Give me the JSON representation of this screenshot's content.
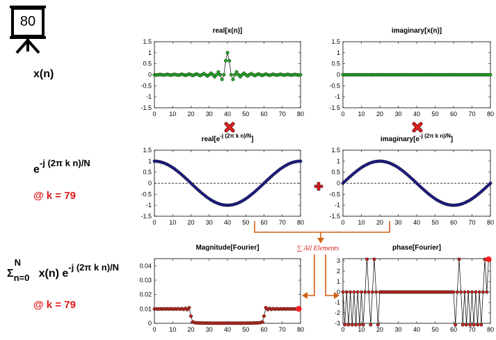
{
  "frame_number": "80",
  "labels": {
    "row1": "x(n)",
    "row2_base": "e",
    "row2_exp": "-j (2π k n)/N",
    "row2_k": "@ k = 79",
    "row3_sigma": "Σ",
    "row3_sup": "N",
    "row3_sub": "n=0",
    "row3_mid": "x(n) e",
    "row3_exp": "-j (2π k n)/N",
    "row3_k": "@ k = 79",
    "sum_annotation": "∑ All Elements"
  },
  "colors": {
    "green_marker": "#1fa81f",
    "navy_marker": "#1a1a8c",
    "red_marker": "#c0221c",
    "highlight": "#ff2020",
    "arrow": "#d06010",
    "annotation_red": "#d0201a"
  },
  "chart_data": [
    {
      "id": "real_x",
      "type": "scatter",
      "title": "real[x(n)]",
      "title_suffix": "",
      "xlim": [
        0,
        80
      ],
      "ylim": [
        -1.5,
        1.5
      ],
      "xticks": [
        "0",
        "10",
        "20",
        "30",
        "40",
        "50",
        "60",
        "70",
        "80"
      ],
      "yticks": [
        "1.5",
        "1",
        "0.5",
        "0",
        "-0.5",
        "-1",
        "-1.5"
      ],
      "formula": "sinc(n-40)",
      "n_points": 81,
      "marker_color": "#1fa81f",
      "connect_lines": true,
      "zero_line": false
    },
    {
      "id": "imag_x",
      "type": "scatter",
      "title": "imaginary[x(n)]",
      "title_suffix": "",
      "xlim": [
        0,
        80
      ],
      "ylim": [
        -1.5,
        1.5
      ],
      "xticks": [
        "0",
        "10",
        "20",
        "30",
        "40",
        "50",
        "60",
        "70",
        "80"
      ],
      "yticks": [
        "1.5",
        "1",
        "0.5",
        "0",
        "-0.5",
        "-1",
        "-1.5"
      ],
      "formula": "zero",
      "n_points": 81,
      "marker_color": "#1fa81f",
      "connect_lines": true,
      "zero_line": false
    },
    {
      "id": "real_e",
      "type": "scatter",
      "title": "real[e",
      "title_sup": "-j (2π k n)/N",
      "title_suffix": "]",
      "xlim": [
        0,
        80
      ],
      "ylim": [
        -1.5,
        1.5
      ],
      "xticks": [
        "0",
        "10",
        "20",
        "30",
        "40",
        "50",
        "60",
        "70",
        "80"
      ],
      "yticks": [
        "1.5",
        "1",
        "0.5",
        "0",
        "-0.5",
        "-1",
        "-1.5"
      ],
      "formula": "cos(2*pi*79*n/80)",
      "n_points": 81,
      "marker_color": "#1a1a8c",
      "connect_lines": false,
      "zero_line": true
    },
    {
      "id": "imag_e",
      "type": "scatter",
      "title": "imaginary[e",
      "title_sup": "-j (2π k n)/N",
      "title_suffix": "]",
      "xlim": [
        0,
        80
      ],
      "ylim": [
        -1.5,
        1.5
      ],
      "xticks": [
        "0",
        "10",
        "20",
        "30",
        "40",
        "50",
        "60",
        "70",
        "80"
      ],
      "yticks": [
        "1.5",
        "1",
        "0.5",
        "0",
        "-0.5",
        "-1",
        "-1.5"
      ],
      "formula": "-sin(2*pi*79*n/80)",
      "n_points": 81,
      "marker_color": "#1a1a8c",
      "connect_lines": false,
      "zero_line": true
    },
    {
      "id": "magnitude",
      "type": "line",
      "title": "Magnitude[Fourier]",
      "title_suffix": "",
      "xlim": [
        0,
        80
      ],
      "ylim": [
        0,
        0.045
      ],
      "xticks": [
        "0",
        "10",
        "20",
        "30",
        "40",
        "50",
        "60",
        "70",
        "80"
      ],
      "yticks": [
        "0.04",
        "0.03",
        "0.02",
        "0.01",
        "0"
      ],
      "formula": "abs(DFT(x))/N",
      "n_points": 80,
      "highlight_k": 79,
      "marker_color": "#c0221c",
      "connect_lines": true,
      "zero_line": false
    },
    {
      "id": "phase",
      "type": "line",
      "title": "phase[Fourier]",
      "title_suffix": "",
      "xlim": [
        0,
        80
      ],
      "ylim": [
        -3,
        3.2
      ],
      "xticks": [
        "0",
        "10",
        "20",
        "30",
        "40",
        "50",
        "60",
        "70",
        "80"
      ],
      "yticks": [
        "3",
        "2",
        "1",
        "0",
        "-1",
        "-2",
        "-3"
      ],
      "formula": "angle(DFT(x))",
      "n_points": 80,
      "highlight_k": 79,
      "marker_color": "#c0221c",
      "connect_lines": true,
      "zero_line": false
    }
  ]
}
